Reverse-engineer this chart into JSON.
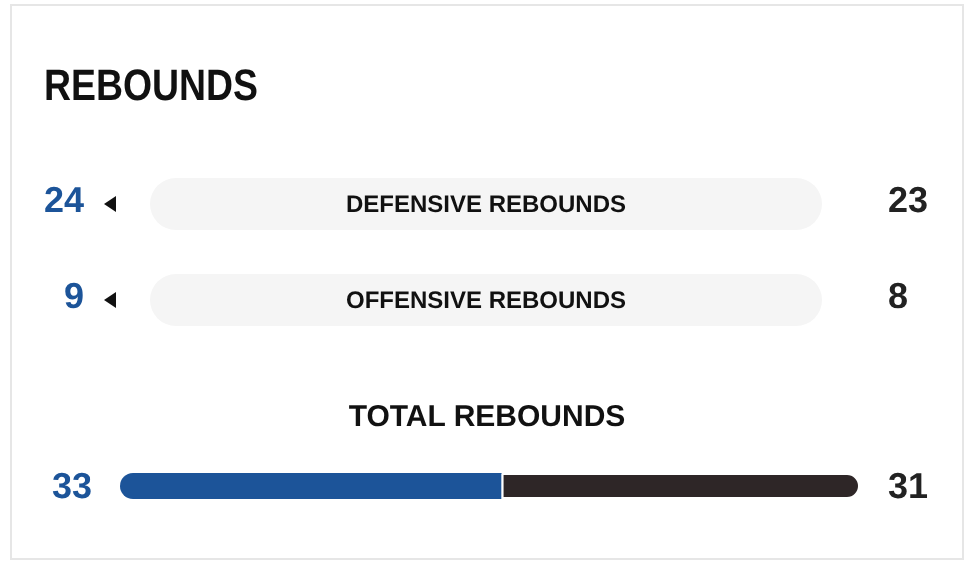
{
  "chart_data": [
    {
      "type": "other",
      "title": "REBOUNDS",
      "annotations": [
        "24",
        "DEFENSIVE REBOUNDS",
        "23",
        "9",
        "OFFENSIVE REBOUNDS",
        "8"
      ]
    },
    {
      "type": "bar",
      "title": "TOTAL REBOUNDS",
      "orientation": "horizontal",
      "stacked": true,
      "data_labels": true,
      "categories": [
        null
      ],
      "series": [
        {
          "color": "#1c5499",
          "values": [
            33
          ]
        },
        {
          "color": "#2e2627",
          "values": [
            31
          ]
        }
      ]
    }
  ]
}
